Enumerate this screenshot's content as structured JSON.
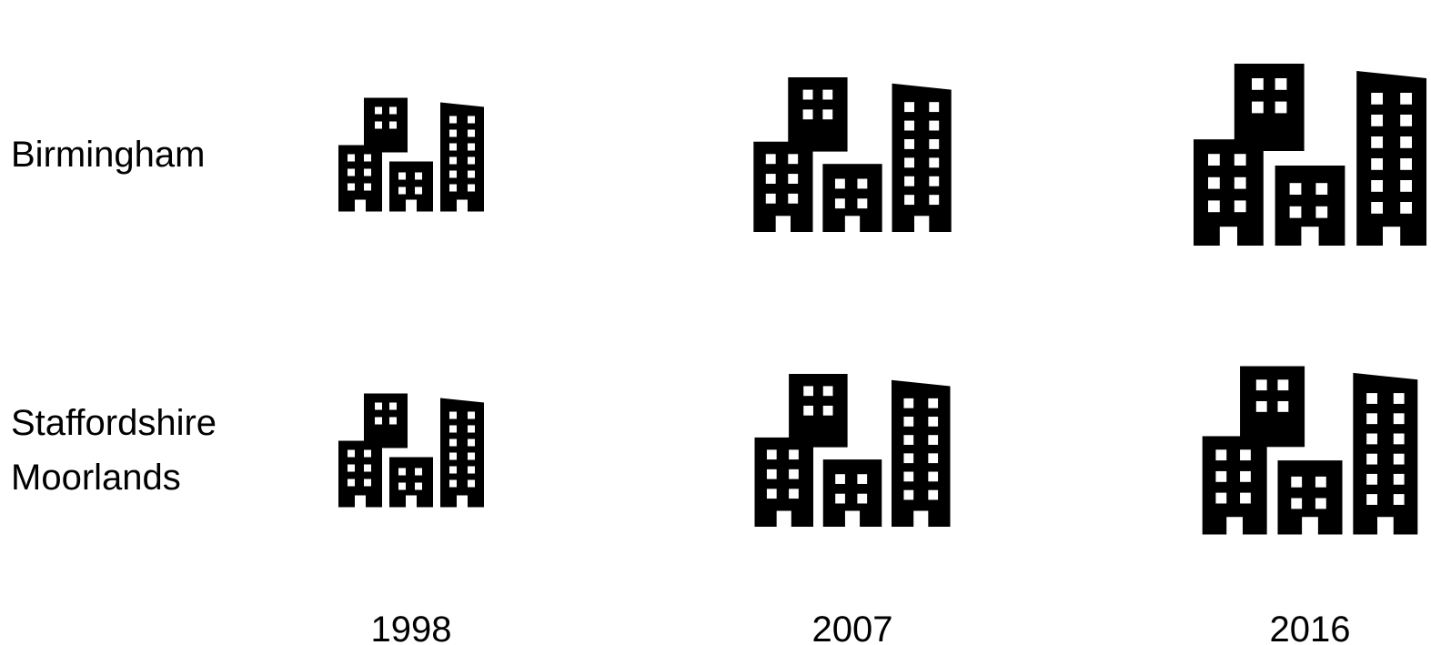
{
  "chart_data": {
    "type": "pictograph",
    "categories": [
      "1998",
      "2007",
      "2016"
    ],
    "series": [
      {
        "name": "Birmingham",
        "color": "#000000",
        "values": [
          125,
          170,
          200
        ]
      },
      {
        "name": "Staffordshire Moorlands",
        "color": "#000000",
        "values": [
          125,
          168,
          185
        ]
      }
    ]
  }
}
